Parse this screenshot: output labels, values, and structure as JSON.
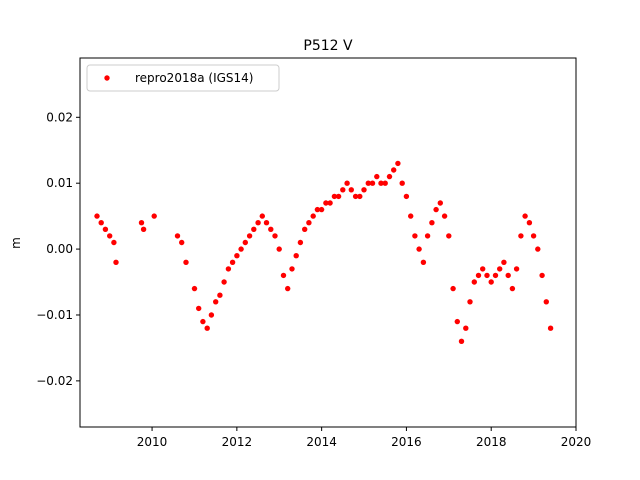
{
  "chart_data": {
    "type": "scatter",
    "title": "P512 V",
    "xlabel": "",
    "ylabel": "m",
    "xlim": [
      2008.3,
      2020.0
    ],
    "ylim": [
      -0.027,
      0.029
    ],
    "xticks": [
      2010,
      2012,
      2014,
      2016,
      2018,
      2020
    ],
    "xtick_labels": [
      "2010",
      "2012",
      "2014",
      "2016",
      "2018",
      "2020"
    ],
    "yticks": [
      -0.02,
      -0.01,
      0.0,
      0.01,
      0.02
    ],
    "ytick_labels": [
      "−0.02",
      "−0.01",
      "0.00",
      "0.01",
      "0.02"
    ],
    "grid": false,
    "legend_position": "upper-left",
    "series": [
      {
        "name": "repro2018a (IGS14)",
        "color": "#ff0000",
        "marker": "circle",
        "x": [
          2008.7,
          2008.8,
          2008.9,
          2009.0,
          2009.1,
          2009.15,
          2009.75,
          2009.8,
          2010.05,
          2010.6,
          2010.7,
          2010.8,
          2011.0,
          2011.1,
          2011.2,
          2011.3,
          2011.4,
          2011.5,
          2011.6,
          2011.7,
          2011.8,
          2011.9,
          2012.0,
          2012.1,
          2012.2,
          2012.3,
          2012.4,
          2012.5,
          2012.6,
          2012.7,
          2012.8,
          2012.9,
          2013.0,
          2013.1,
          2013.2,
          2013.3,
          2013.4,
          2013.5,
          2013.6,
          2013.7,
          2013.8,
          2013.9,
          2014.0,
          2014.1,
          2014.2,
          2014.3,
          2014.4,
          2014.5,
          2014.6,
          2014.7,
          2014.8,
          2014.9,
          2015.0,
          2015.1,
          2015.2,
          2015.3,
          2015.4,
          2015.5,
          2015.6,
          2015.7,
          2015.8,
          2015.9,
          2016.0,
          2016.1,
          2016.2,
          2016.3,
          2016.4,
          2016.5,
          2016.6,
          2016.7,
          2016.8,
          2016.9,
          2017.0,
          2017.1,
          2017.2,
          2017.3,
          2017.4,
          2017.5,
          2017.6,
          2017.7,
          2017.8,
          2017.9,
          2018.0,
          2018.1,
          2018.2,
          2018.3,
          2018.4,
          2018.5,
          2018.6,
          2018.7,
          2018.8,
          2018.9,
          2019.0,
          2019.1,
          2019.2,
          2019.3,
          2019.4
        ],
        "y": [
          0.005,
          0.004,
          0.003,
          0.002,
          0.001,
          -0.002,
          0.004,
          0.003,
          0.005,
          0.002,
          0.001,
          -0.002,
          -0.006,
          -0.009,
          -0.011,
          -0.012,
          -0.01,
          -0.008,
          -0.007,
          -0.005,
          -0.003,
          -0.002,
          -0.001,
          0.0,
          0.001,
          0.002,
          0.003,
          0.004,
          0.005,
          0.004,
          0.003,
          0.002,
          0.0,
          -0.004,
          -0.006,
          -0.003,
          -0.001,
          0.001,
          0.003,
          0.004,
          0.005,
          0.006,
          0.006,
          0.007,
          0.007,
          0.008,
          0.008,
          0.009,
          0.01,
          0.009,
          0.008,
          0.008,
          0.009,
          0.01,
          0.01,
          0.011,
          0.01,
          0.01,
          0.011,
          0.012,
          0.013,
          0.01,
          0.008,
          0.005,
          0.002,
          0.0,
          -0.002,
          0.002,
          0.004,
          0.006,
          0.007,
          0.005,
          0.002,
          -0.006,
          -0.011,
          -0.014,
          -0.012,
          -0.008,
          -0.005,
          -0.004,
          -0.003,
          -0.004,
          -0.005,
          -0.004,
          -0.003,
          -0.002,
          -0.004,
          -0.006,
          -0.003,
          0.002,
          0.005,
          0.004,
          0.002,
          0.0,
          -0.004,
          -0.008,
          -0.012
        ]
      }
    ]
  }
}
